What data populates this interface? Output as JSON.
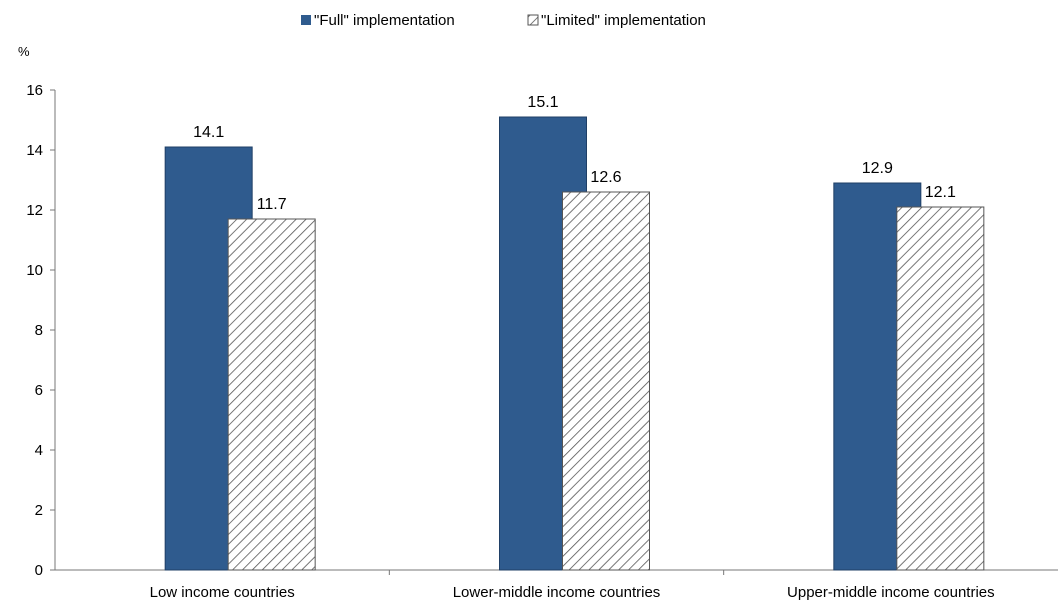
{
  "chart_data": {
    "type": "bar",
    "title": "",
    "xlabel": "",
    "ylabel": "%",
    "ylim": [
      0,
      16
    ],
    "yticks": [
      0,
      2,
      4,
      6,
      8,
      10,
      12,
      14,
      16
    ],
    "grid": false,
    "legend_position": "top-center",
    "categories": [
      "Low income countries",
      "Lower-middle income countries",
      "Upper-middle income countries"
    ],
    "series": [
      {
        "name": "\"Full\" implementation",
        "values": [
          14.1,
          15.1,
          12.9
        ],
        "labels": [
          "14.1",
          "15.1",
          "12.9"
        ],
        "color": "#2f5b8e",
        "pattern": "solid"
      },
      {
        "name": "\"Limited\" implementation",
        "values": [
          11.7,
          12.6,
          12.1
        ],
        "labels": [
          "11.7",
          "12.6",
          "12.1"
        ],
        "color": "#555555",
        "pattern": "diagonal-hatch"
      }
    ]
  }
}
